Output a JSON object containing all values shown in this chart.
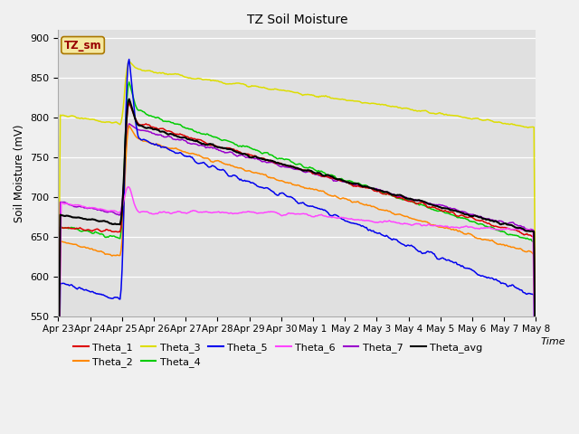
{
  "title": "TZ Soil Moisture",
  "ylabel": "Soil Moisture (mV)",
  "xlabel": "Time",
  "label_box": "TZ_sm",
  "ylim": [
    550,
    910
  ],
  "yticks": [
    550,
    600,
    650,
    700,
    750,
    800,
    850,
    900
  ],
  "series_colors": {
    "Theta_1": "#dd0000",
    "Theta_2": "#ff8800",
    "Theta_3": "#dddd00",
    "Theta_4": "#00cc00",
    "Theta_5": "#0000ee",
    "Theta_6": "#ff44ff",
    "Theta_7": "#9900cc",
    "Theta_avg": "#000000"
  },
  "xtick_labels": [
    "Apr 23",
    "Apr 24",
    "Apr 25",
    "Apr 26",
    "Apr 27",
    "Apr 28",
    "Apr 29",
    "Apr 30",
    "May 1",
    "May 2",
    "May 3",
    "May 4",
    "May 5",
    "May 6",
    "May 7",
    "May 8"
  ],
  "fig_bg": "#f0f0f0",
  "plot_bg": "#e0e0e0"
}
